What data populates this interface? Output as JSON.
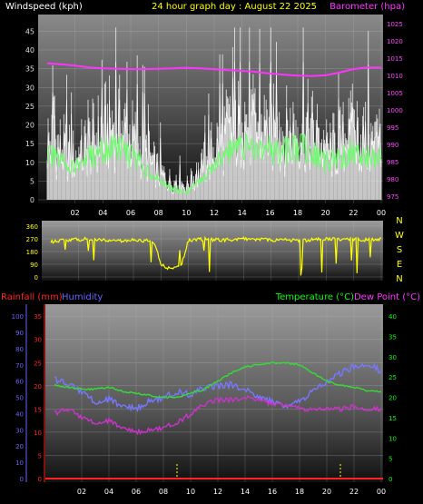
{
  "header": {
    "left_title": "Windspeed (kph)",
    "center_title": "24 hour graph day : August 22 2025",
    "right_title": "Barometer (hpa)"
  },
  "colors": {
    "background": "#000000",
    "windspeed": "#f0f0f0",
    "gust_fill": "#e6e6e6",
    "avg_wind": "#66ff66",
    "barometer": "#ff33ff",
    "direction": "#ffff00",
    "temperature": "#33dd33",
    "dew_point": "#cc33cc",
    "humidity": "#7777ff",
    "rainfall": "#ff2222",
    "axis_text_cyan": "#00ff00",
    "axis_text_white": "#ffffff",
    "axis_text_purple": "#ff44ff",
    "axis_text_yellow": "#ffff00",
    "axis_text_blue": "#6666ff",
    "axis_text_red": "#ff2222",
    "axis_text_green": "#00ff00"
  },
  "chart_data": [
    {
      "type": "line",
      "title": "24 hour graph day : August 22 2025",
      "xlabel": "",
      "x_ticks": [
        "02",
        "04",
        "06",
        "08",
        "10",
        "12",
        "14",
        "16",
        "18",
        "20",
        "22",
        "00"
      ],
      "y_left_label": "Windspeed (kph)",
      "y_left_ticks": [
        "0",
        "5",
        "10",
        "15",
        "20",
        "25",
        "30",
        "35",
        "40",
        "45"
      ],
      "y_left_range": [
        0,
        48
      ],
      "y_right_label": "Barometer (hpa)",
      "y_right_ticks": [
        "975",
        "980",
        "985",
        "990",
        "995",
        "1000",
        "1005",
        "1010",
        "1015",
        "1020",
        "1025"
      ],
      "y_right_range": [
        974,
        1026
      ],
      "series": [
        {
          "name": "Windspeed (kph)",
          "x": [
            0,
            1,
            2,
            3,
            4,
            5,
            6,
            7,
            8,
            9,
            10,
            11,
            12,
            13,
            14,
            15,
            16,
            17,
            18,
            19,
            20,
            21,
            22,
            23,
            24
          ],
          "values": [
            17,
            15,
            12,
            16,
            20,
            22,
            18,
            14,
            8,
            5,
            4,
            8,
            15,
            20,
            22,
            21,
            20,
            19,
            21,
            20,
            14,
            16,
            20,
            17,
            15
          ]
        },
        {
          "name": "Windspeed average",
          "x": [
            0,
            1,
            2,
            3,
            4,
            5,
            6,
            7,
            8,
            9,
            10,
            11,
            12,
            13,
            14,
            15,
            16,
            17,
            18,
            19,
            20,
            21,
            22,
            23,
            24
          ],
          "values": [
            12,
            10,
            9,
            11,
            13,
            14,
            12,
            9,
            5,
            3,
            2,
            5,
            10,
            13,
            14,
            14,
            13,
            13,
            14,
            13,
            10,
            11,
            13,
            12,
            11
          ]
        },
        {
          "name": "Barometer (hpa)",
          "x": [
            0,
            1,
            2,
            3,
            4,
            5,
            6,
            7,
            8,
            9,
            10,
            11,
            12,
            13,
            14,
            15,
            16,
            17,
            18,
            19,
            20,
            21,
            22,
            23,
            24
          ],
          "values": [
            1013.5,
            1013.2,
            1012.8,
            1012.3,
            1012.0,
            1011.9,
            1011.8,
            1011.8,
            1011.9,
            1012.0,
            1012.2,
            1012.0,
            1011.8,
            1011.5,
            1011.3,
            1011.0,
            1010.5,
            1010.2,
            1009.9,
            1009.8,
            1010.0,
            1010.8,
            1011.8,
            1012.3,
            1012.3
          ]
        }
      ]
    },
    {
      "type": "line",
      "title": "",
      "y_left_ticks": [
        "0",
        "90",
        "180",
        "270",
        "360"
      ],
      "y_left_range": [
        0,
        360
      ],
      "y_right_ticks": [
        "N",
        "W",
        "S",
        "E",
        "N"
      ],
      "series": [
        {
          "name": "Wind direction",
          "x": [
            0,
            1,
            2,
            3,
            4,
            5,
            6,
            7,
            7.5,
            8,
            8.5,
            9,
            9.5,
            10,
            11,
            12,
            13,
            14,
            15,
            16,
            17,
            18,
            19,
            20,
            21,
            22,
            23,
            24
          ],
          "values": [
            250,
            260,
            265,
            270,
            258,
            255,
            262,
            255,
            250,
            90,
            60,
            60,
            90,
            260,
            268,
            262,
            265,
            270,
            268,
            262,
            265,
            258,
            262,
            270,
            265,
            268,
            262,
            265
          ]
        }
      ]
    },
    {
      "type": "line",
      "title": "",
      "y_far_left_label": "Rainfall (mm)",
      "y_left_label": "Humidity",
      "y_right_label": "Temperature (°C)",
      "y_far_right_label": "Dew Point (°C)",
      "y_left_ticks": [
        "0",
        "10",
        "20",
        "30",
        "40",
        "50",
        "60",
        "70",
        "80",
        "90",
        "100"
      ],
      "y_mid_left_ticks": [
        "0",
        "5",
        "10",
        "15",
        "20",
        "25",
        "30",
        "35"
      ],
      "y_right_ticks": [
        "0",
        "5",
        "10",
        "15",
        "20",
        "25",
        "30",
        "35",
        "40"
      ],
      "x_ticks": [
        "02",
        "04",
        "06",
        "08",
        "10",
        "12",
        "14",
        "16",
        "18",
        "20",
        "22",
        "00"
      ],
      "series": [
        {
          "name": "Temperature (°C)",
          "x": [
            0,
            1,
            2,
            3,
            4,
            5,
            6,
            7,
            8,
            9,
            10,
            11,
            12,
            13,
            14,
            15,
            16,
            17,
            18,
            19,
            20,
            21,
            22,
            23,
            24
          ],
          "values": [
            23,
            22.5,
            22,
            22,
            22.5,
            21.5,
            21,
            20.5,
            20,
            20,
            21,
            22,
            24,
            26,
            27.5,
            28,
            28.5,
            28.5,
            28,
            26,
            24,
            23,
            22.5,
            21.5,
            21.5
          ]
        },
        {
          "name": "Dew Point (°C)",
          "x": [
            0,
            1,
            2,
            3,
            4,
            5,
            6,
            7,
            8,
            9,
            10,
            11,
            12,
            13,
            14,
            15,
            16,
            17,
            18,
            19,
            20,
            21,
            22,
            23,
            24
          ],
          "values": [
            14,
            15,
            13,
            12,
            12.5,
            11,
            10,
            10.5,
            11,
            12,
            14,
            16,
            17,
            17,
            17.5,
            17,
            16,
            16,
            15,
            15,
            15,
            15,
            15.5,
            15,
            15
          ]
        },
        {
          "name": "Humidity",
          "x": [
            0,
            1,
            2,
            3,
            4,
            5,
            6,
            7,
            8,
            9,
            10,
            11,
            12,
            13,
            14,
            15,
            16,
            17,
            18,
            19,
            20,
            21,
            22,
            23,
            24
          ],
          "values": [
            61,
            58,
            53,
            47,
            49,
            45,
            43,
            48,
            50,
            53,
            52,
            56,
            57,
            58,
            55,
            50,
            47,
            45,
            47,
            55,
            59,
            65,
            69,
            71,
            66
          ]
        },
        {
          "name": "Rainfall (mm)",
          "x": [
            0,
            24
          ],
          "values": [
            0,
            0
          ]
        }
      ]
    }
  ]
}
